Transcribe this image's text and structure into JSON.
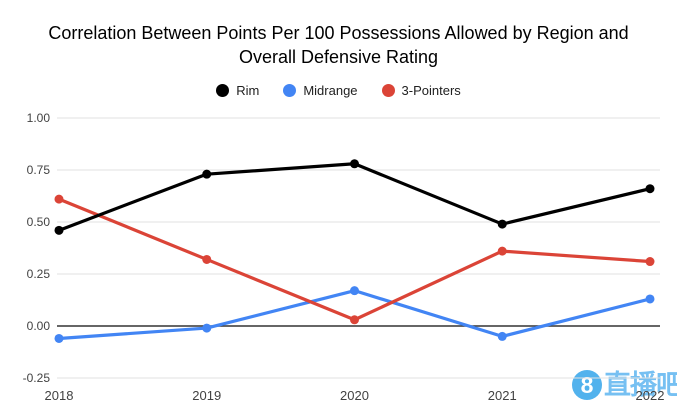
{
  "watermark": {
    "logo_char": "8",
    "text": "直播吧"
  },
  "chart_data": {
    "type": "line",
    "title": "Correlation Between Points Per 100 Possessions Allowed by Region and Overall Defensive Rating",
    "x": [
      "2018",
      "2019",
      "2020",
      "2021",
      "2022"
    ],
    "series": [
      {
        "name": "Rim",
        "color": "#000000",
        "values": [
          0.46,
          0.73,
          0.78,
          0.49,
          0.66
        ]
      },
      {
        "name": "Midrange",
        "color": "#4285f4",
        "values": [
          -0.06,
          -0.01,
          0.17,
          -0.05,
          0.13
        ]
      },
      {
        "name": "3-Pointers",
        "color": "#db4437",
        "values": [
          0.61,
          0.32,
          0.03,
          0.36,
          0.31
        ]
      }
    ],
    "z_order": [
      "Midrange",
      "3-Pointers",
      "Rim"
    ],
    "ylim": [
      -0.25,
      1.0
    ],
    "yticks": [
      1.0,
      0.75,
      0.5,
      0.25,
      0.0,
      -0.25
    ],
    "ytick_labels": [
      "1.00",
      "0.75",
      "0.50",
      "0.25",
      "0.00",
      "-0.25"
    ],
    "grid": true,
    "legend_position": "top",
    "style": {
      "grid_color": "#e2e2e2",
      "zero_line_color": "#333333",
      "axis_label_color": "#424242",
      "background": "#ffffff",
      "line_width": 3.2,
      "point_radius": 4.5
    }
  }
}
